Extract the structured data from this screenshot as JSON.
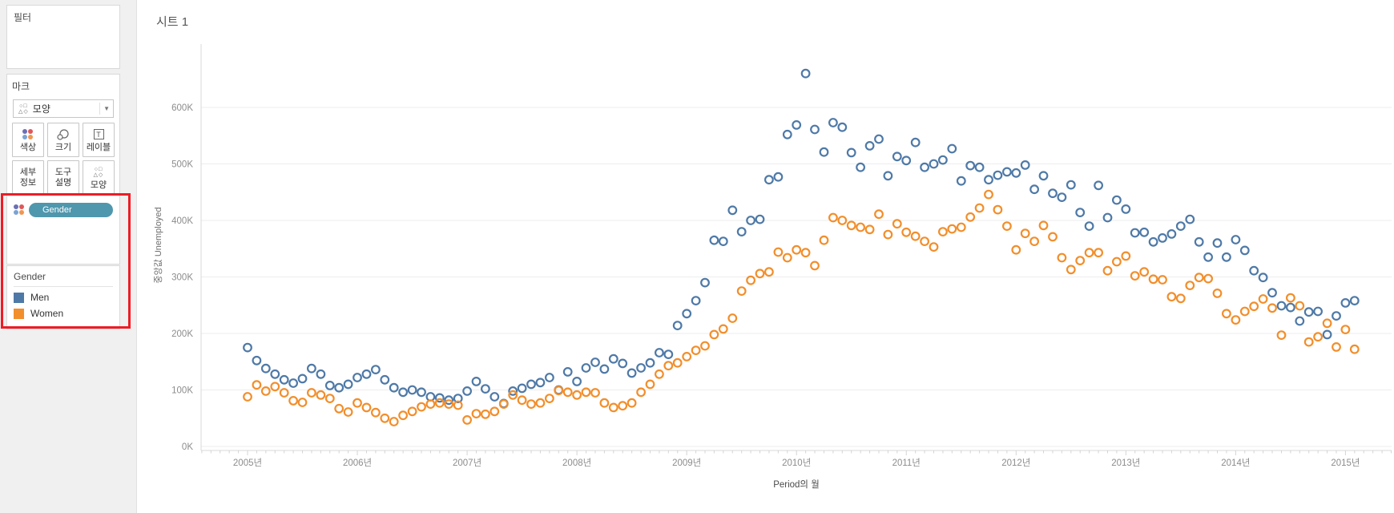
{
  "sidebar": {
    "filter_card": {
      "title": "필터"
    },
    "marks_card": {
      "title": "마크",
      "mark_type": {
        "label": "모양"
      },
      "buttons": [
        {
          "id": "color",
          "line1": "색상"
        },
        {
          "id": "size",
          "line1": "크기"
        },
        {
          "id": "label",
          "line1": "레이블"
        },
        {
          "id": "detail",
          "line1": "세부",
          "line2": "정보"
        },
        {
          "id": "tooltip",
          "line1": "도구",
          "line2": "설명"
        },
        {
          "id": "shape",
          "line1": "모양"
        }
      ],
      "color_icon_palette": [
        "#6a6fb5",
        "#e05759",
        "#7aa3d4",
        "#f0964f"
      ],
      "shelf_pill": {
        "label": "Gender",
        "color": "#4f97ad"
      }
    },
    "legend_card": {
      "title": "Gender",
      "items": [
        {
          "label": "Men",
          "color": "#4e79a7"
        },
        {
          "label": "Women",
          "color": "#f28e2b"
        }
      ]
    },
    "highlight_box_color": "#ee1c25"
  },
  "sheet": {
    "title": "시트 1"
  },
  "chart_data": {
    "type": "scatter",
    "title": "시트 1",
    "xlabel": "Period의 월",
    "ylabel": "중앙값 Unemployed",
    "marker": "open-circle",
    "grid": "horizontal",
    "legend_position": "left-sidebar",
    "x_unit": "month",
    "x_start": "2005-01",
    "x_end": "2015-02",
    "x_tick_labels": [
      "2005년",
      "2006년",
      "2007년",
      "2008년",
      "2009년",
      "2010년",
      "2011년",
      "2012년",
      "2013년",
      "2014년",
      "2015년"
    ],
    "y_tick_labels": [
      "0K",
      "100K",
      "200K",
      "300K",
      "400K",
      "500K",
      "600K"
    ],
    "y_tick_values_k": [
      0,
      100,
      200,
      300,
      400,
      500,
      600
    ],
    "ylim_k": [
      0,
      700
    ],
    "value_scale": 1000,
    "series": [
      {
        "name": "Men",
        "color": "#4e79a7",
        "values_k": [
          175,
          152,
          138,
          128,
          118,
          112,
          120,
          138,
          128,
          108,
          104,
          110,
          122,
          128,
          136,
          118,
          104,
          96,
          100,
          96,
          88,
          86,
          82,
          85,
          98,
          115,
          102,
          88,
          76,
          98,
          103,
          110,
          113,
          122,
          100,
          132,
          115,
          139,
          149,
          137,
          155,
          147,
          130,
          139,
          148,
          166,
          163,
          214,
          235,
          258,
          290,
          365,
          363,
          418,
          380,
          400,
          402,
          472,
          477,
          552,
          569,
          660,
          561,
          521,
          573,
          565,
          520,
          494,
          532,
          544,
          479,
          513,
          506,
          538,
          494,
          500,
          507,
          527,
          470,
          497,
          494,
          472,
          480,
          486,
          484,
          498,
          455,
          479,
          448,
          441,
          463,
          414,
          390,
          462,
          405,
          436,
          420,
          378,
          379,
          362,
          369,
          376,
          390,
          402,
          362,
          335,
          360,
          335,
          366,
          347,
          311,
          299,
          272,
          249,
          246,
          222,
          238,
          239,
          198,
          231,
          254,
          258
        ]
      },
      {
        "name": "Women",
        "color": "#f28e2b",
        "values_k": [
          88,
          109,
          98,
          106,
          95,
          81,
          78,
          95,
          91,
          85,
          67,
          61,
          77,
          69,
          60,
          50,
          44,
          55,
          62,
          70,
          75,
          77,
          75,
          73,
          47,
          58,
          57,
          62,
          75,
          91,
          82,
          75,
          77,
          85,
          99,
          96,
          91,
          96,
          95,
          77,
          69,
          72,
          77,
          96,
          110,
          128,
          143,
          148,
          159,
          170,
          178,
          198,
          208,
          227,
          275,
          294,
          306,
          309,
          344,
          334,
          348,
          343,
          320,
          365,
          405,
          400,
          391,
          388,
          384,
          411,
          375,
          394,
          379,
          372,
          363,
          353,
          380,
          385,
          388,
          406,
          422,
          446,
          419,
          390,
          348,
          377,
          363,
          391,
          371,
          334,
          313,
          329,
          343,
          343,
          311,
          327,
          337,
          302,
          309,
          296,
          295,
          265,
          262,
          285,
          299,
          297,
          271,
          235,
          224,
          239,
          248,
          261,
          245,
          197,
          263,
          249,
          185,
          194,
          218,
          176,
          207,
          172
        ]
      }
    ]
  }
}
